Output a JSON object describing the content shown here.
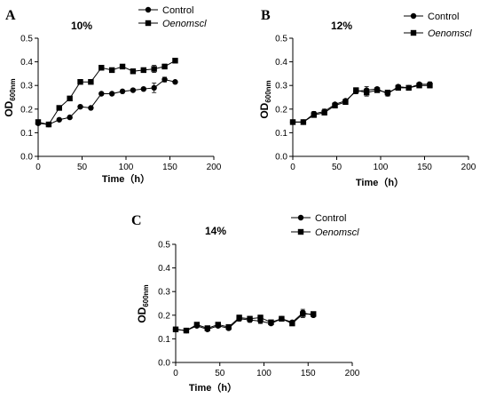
{
  "chart_data": [
    {
      "panel": "A",
      "type": "line",
      "title": "10%",
      "xlabel": "Time（h）",
      "ylabel": "OD",
      "ylabel_sub": "600nm",
      "xlim": [
        0,
        200
      ],
      "ylim": [
        0.0,
        0.5
      ],
      "xticks": [
        "0",
        "50",
        "100",
        "150",
        "200"
      ],
      "yticks": [
        "0.0",
        "0.1",
        "0.2",
        "0.3",
        "0.4",
        "0.5"
      ],
      "legend_position": "top-right",
      "x": [
        0,
        12,
        24,
        36,
        48,
        60,
        72,
        84,
        96,
        108,
        120,
        132,
        144,
        156
      ],
      "series": [
        {
          "name": "Control",
          "marker": "circle",
          "values": [
            0.14,
            0.135,
            0.155,
            0.165,
            0.21,
            0.205,
            0.265,
            0.265,
            0.275,
            0.28,
            0.285,
            0.29,
            0.325,
            0.315
          ],
          "errors": [
            0.005,
            0.005,
            0.005,
            0.005,
            0.005,
            0.005,
            0.005,
            0.005,
            0.005,
            0.005,
            0.005,
            0.02,
            0.01,
            0.005
          ]
        },
        {
          "name": "Oenomscl",
          "marker": "square",
          "italic": true,
          "values": [
            0.145,
            0.135,
            0.205,
            0.245,
            0.315,
            0.315,
            0.375,
            0.365,
            0.38,
            0.36,
            0.365,
            0.37,
            0.38,
            0.405
          ],
          "errors": [
            0.005,
            0.005,
            0.005,
            0.005,
            0.005,
            0.005,
            0.005,
            0.005,
            0.005,
            0.01,
            0.005,
            0.015,
            0.01,
            0.005
          ]
        }
      ]
    },
    {
      "panel": "B",
      "type": "line",
      "title": "12%",
      "xlabel": "Time（h）",
      "ylabel": "OD",
      "ylabel_sub": "600nm",
      "xlim": [
        0,
        200
      ],
      "ylim": [
        0.0,
        0.5
      ],
      "xticks": [
        "0",
        "50",
        "100",
        "150",
        "200"
      ],
      "yticks": [
        "0.0",
        "0.1",
        "0.2",
        "0.3",
        "0.4",
        "0.5"
      ],
      "legend_position": "top-right",
      "x": [
        0,
        12,
        24,
        36,
        48,
        60,
        72,
        84,
        96,
        108,
        120,
        132,
        144,
        156
      ],
      "series": [
        {
          "name": "Control",
          "marker": "circle",
          "values": [
            0.145,
            0.145,
            0.18,
            0.19,
            0.22,
            0.235,
            0.275,
            0.28,
            0.285,
            0.265,
            0.295,
            0.29,
            0.305,
            0.305
          ],
          "errors": [
            0.005,
            0.005,
            0.01,
            0.01,
            0.005,
            0.005,
            0.01,
            0.015,
            0.005,
            0.01,
            0.005,
            0.005,
            0.005,
            0.01
          ]
        },
        {
          "name": "Oenomscl",
          "marker": "square",
          "italic": true,
          "values": [
            0.145,
            0.145,
            0.175,
            0.185,
            0.215,
            0.23,
            0.28,
            0.27,
            0.28,
            0.27,
            0.29,
            0.29,
            0.3,
            0.3
          ],
          "errors": [
            0.005,
            0.005,
            0.01,
            0.01,
            0.005,
            0.005,
            0.01,
            0.015,
            0.005,
            0.01,
            0.005,
            0.005,
            0.005,
            0.01
          ]
        }
      ]
    },
    {
      "panel": "C",
      "type": "line",
      "title": "14%",
      "xlabel": "Time（h）",
      "ylabel": "OD",
      "ylabel_sub": "600nm",
      "xlim": [
        0,
        200
      ],
      "ylim": [
        0.0,
        0.5
      ],
      "xticks": [
        "0",
        "50",
        "100",
        "150",
        "200"
      ],
      "yticks": [
        "0.0",
        "0.1",
        "0.2",
        "0.3",
        "0.4",
        "0.5"
      ],
      "legend_position": "top-right",
      "x": [
        0,
        12,
        24,
        36,
        48,
        60,
        72,
        84,
        96,
        108,
        120,
        132,
        144,
        156
      ],
      "series": [
        {
          "name": "Control",
          "marker": "circle",
          "values": [
            0.14,
            0.135,
            0.155,
            0.14,
            0.155,
            0.145,
            0.185,
            0.18,
            0.175,
            0.165,
            0.185,
            0.17,
            0.21,
            0.2
          ],
          "errors": [
            0.005,
            0.005,
            0.005,
            0.005,
            0.005,
            0.005,
            0.01,
            0.01,
            0.01,
            0.005,
            0.005,
            0.005,
            0.015,
            0.005
          ]
        },
        {
          "name": "Oenomscl",
          "marker": "square",
          "italic": true,
          "values": [
            0.14,
            0.135,
            0.16,
            0.145,
            0.16,
            0.15,
            0.19,
            0.185,
            0.19,
            0.17,
            0.185,
            0.165,
            0.205,
            0.205
          ],
          "errors": [
            0.005,
            0.005,
            0.005,
            0.005,
            0.005,
            0.005,
            0.01,
            0.01,
            0.01,
            0.005,
            0.005,
            0.005,
            0.015,
            0.005
          ]
        }
      ]
    }
  ]
}
